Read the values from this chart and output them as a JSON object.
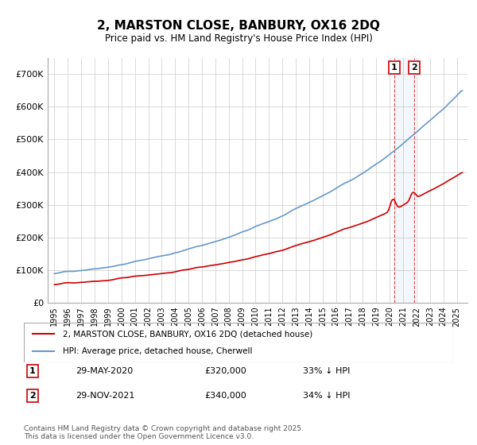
{
  "title": "2, MARSTON CLOSE, BANBURY, OX16 2DQ",
  "subtitle": "Price paid vs. HM Land Registry's House Price Index (HPI)",
  "legend_label_1": "2, MARSTON CLOSE, BANBURY, OX16 2DQ (detached house)",
  "legend_label_2": "HPI: Average price, detached house, Cherwell",
  "annotation_1_date": "29-MAY-2020",
  "annotation_1_price": "£320,000",
  "annotation_1_hpi": "33% ↓ HPI",
  "annotation_2_date": "29-NOV-2021",
  "annotation_2_price": "£340,000",
  "annotation_2_hpi": "34% ↓ HPI",
  "footnote": "Contains HM Land Registry data © Crown copyright and database right 2025.\nThis data is licensed under the Open Government Licence v3.0.",
  "line1_color": "#cc0000",
  "line2_color": "#6699cc",
  "vline_color": "#cc0000",
  "background_color": "#ffffff",
  "grid_color": "#cccccc",
  "ylim": [
    0,
    750000
  ],
  "yticks": [
    0,
    100000,
    200000,
    300000,
    400000,
    500000,
    600000,
    700000
  ],
  "ytick_labels": [
    "£0",
    "£100K",
    "£200K",
    "£300K",
    "£400K",
    "£500K",
    "£600K",
    "£700K"
  ]
}
